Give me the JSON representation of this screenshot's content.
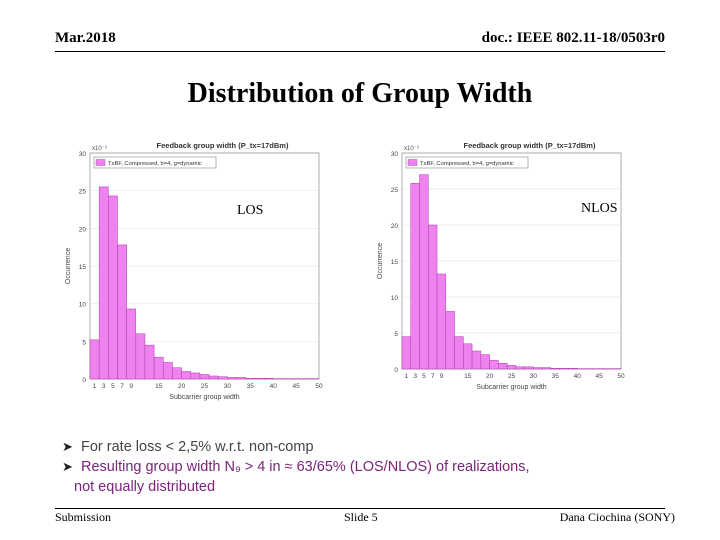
{
  "header": {
    "date": "Mar.2018",
    "doc_id": "doc.: IEEE 802.11-18/0503r0"
  },
  "slide_title": "Distribution of Group Width",
  "chart_labels": {
    "los": "LOS",
    "nlos": "NLOS"
  },
  "bullets": [
    "For rate loss < 2,5% w.r.t. non-comp",
    "Resulting group width N₉ > 4 in ≈ 63/65% (LOS/NLOS) of realizations,",
    "not equally distributed"
  ],
  "footer": {
    "left": "Submission",
    "center": "Slide 5",
    "right": "Dana Ciochina (SONY)"
  },
  "colors": {
    "bar_fill": "#ee82ee",
    "bar_stroke": "#b03cb0",
    "bullet_highlight": "#7b237b"
  },
  "chart_data": [
    {
      "type": "bar",
      "title": "Feedback group width (P_tx=17dBm)",
      "legend": "TxBF, Compressed, b=4, g=dynamic",
      "xlabel": "Subcarrier group width",
      "ylabel": "Occurrence",
      "y_multiplier": "x10⁻²",
      "xlim": [
        0,
        50
      ],
      "ylim": [
        0,
        30
      ],
      "x_ticks": [
        1,
        3,
        5,
        7,
        9,
        15,
        20,
        25,
        30,
        35,
        40,
        45,
        50
      ],
      "y_ticks": [
        0,
        5,
        10,
        15,
        20,
        25,
        30
      ],
      "x": [
        1,
        3,
        5,
        7,
        9,
        11,
        13,
        15,
        17,
        19,
        21,
        23,
        25,
        27,
        29,
        31,
        33,
        35,
        37,
        39,
        41,
        43,
        45,
        47,
        49
      ],
      "values": [
        5.2,
        25.5,
        24.3,
        17.8,
        9.3,
        6.0,
        4.5,
        2.9,
        2.2,
        1.5,
        1.0,
        0.8,
        0.6,
        0.4,
        0.3,
        0.2,
        0.2,
        0.1,
        0.1,
        0.1,
        0.05,
        0.05,
        0.05,
        0.05,
        0.05
      ]
    },
    {
      "type": "bar",
      "title": "Feedback group width (P_tx=17dBm)",
      "legend": "TxBF, Compressed, b=4, g=dynamic",
      "xlabel": "Subcarrier group width",
      "ylabel": "Occurrence",
      "y_multiplier": "x10⁻²",
      "xlim": [
        0,
        50
      ],
      "ylim": [
        0,
        30
      ],
      "x_ticks": [
        1,
        3,
        5,
        7,
        9,
        15,
        20,
        25,
        30,
        35,
        40,
        45,
        50
      ],
      "y_ticks": [
        0,
        5,
        10,
        15,
        20,
        25,
        30
      ],
      "x": [
        1,
        3,
        5,
        7,
        9,
        11,
        13,
        15,
        17,
        19,
        21,
        23,
        25,
        27,
        29,
        31,
        33,
        35,
        37,
        39,
        41,
        43,
        45,
        47,
        49
      ],
      "values": [
        4.5,
        25.8,
        27.0,
        20.0,
        13.2,
        8.0,
        4.5,
        3.5,
        2.5,
        2.0,
        1.2,
        0.8,
        0.5,
        0.3,
        0.3,
        0.2,
        0.2,
        0.1,
        0.1,
        0.1,
        0.05,
        0.05,
        0.05,
        0.05,
        0.05
      ]
    }
  ]
}
